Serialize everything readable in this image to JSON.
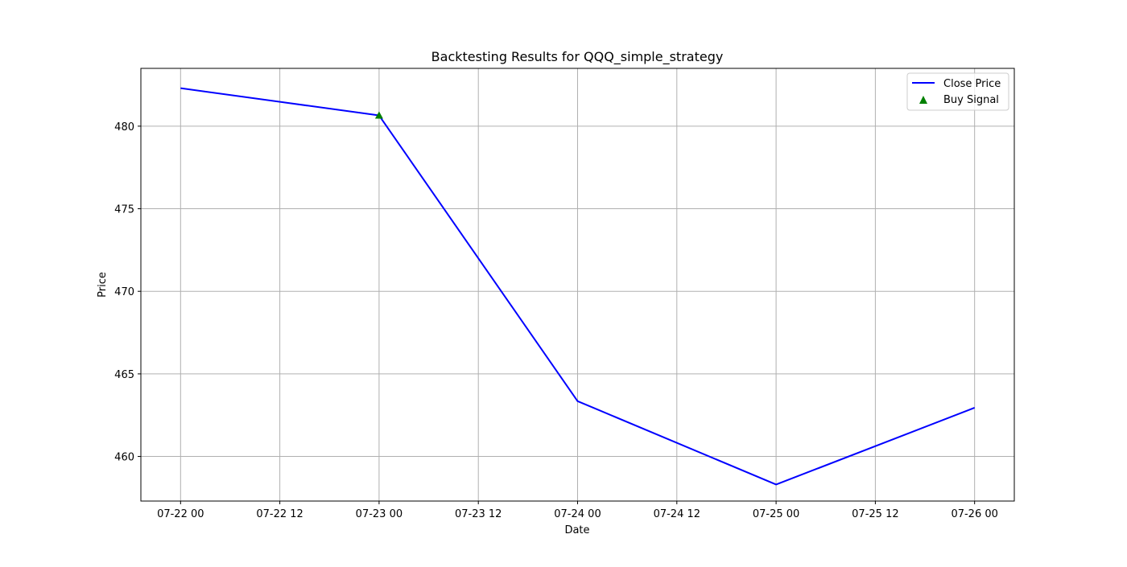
{
  "chart_data": {
    "type": "line",
    "title": "Backtesting Results for QQQ_simple_strategy",
    "xlabel": "Date",
    "ylabel": "Price",
    "x_tick_labels": [
      "07-22 00",
      "07-22 12",
      "07-23 00",
      "07-23 12",
      "07-24 00",
      "07-24 12",
      "07-25 00",
      "07-25 12",
      "07-26 00"
    ],
    "x_tick_values": [
      "2024-07-22 00:00",
      "2024-07-22 12:00",
      "2024-07-23 00:00",
      "2024-07-23 12:00",
      "2024-07-24 00:00",
      "2024-07-24 12:00",
      "2024-07-25 00:00",
      "2024-07-25 12:00",
      "2024-07-26 00:00"
    ],
    "y_ticks": [
      460,
      465,
      470,
      475,
      480
    ],
    "xlim": [
      "2024-07-21 19:12",
      "2024-07-26 04:48"
    ],
    "ylim": [
      457.3,
      483.5
    ],
    "grid": true,
    "legend_position": "top-right",
    "series": [
      {
        "name": "Close Price",
        "kind": "line",
        "color": "#0000ff",
        "x": [
          "2024-07-22",
          "2024-07-23",
          "2024-07-24",
          "2024-07-25",
          "2024-07-26"
        ],
        "y": [
          482.3,
          480.65,
          463.35,
          458.3,
          462.95
        ]
      },
      {
        "name": "Buy Signal",
        "kind": "scatter",
        "marker": "triangle-up",
        "color": "#008000",
        "x": [
          "2024-07-23"
        ],
        "y": [
          480.65
        ]
      }
    ]
  }
}
